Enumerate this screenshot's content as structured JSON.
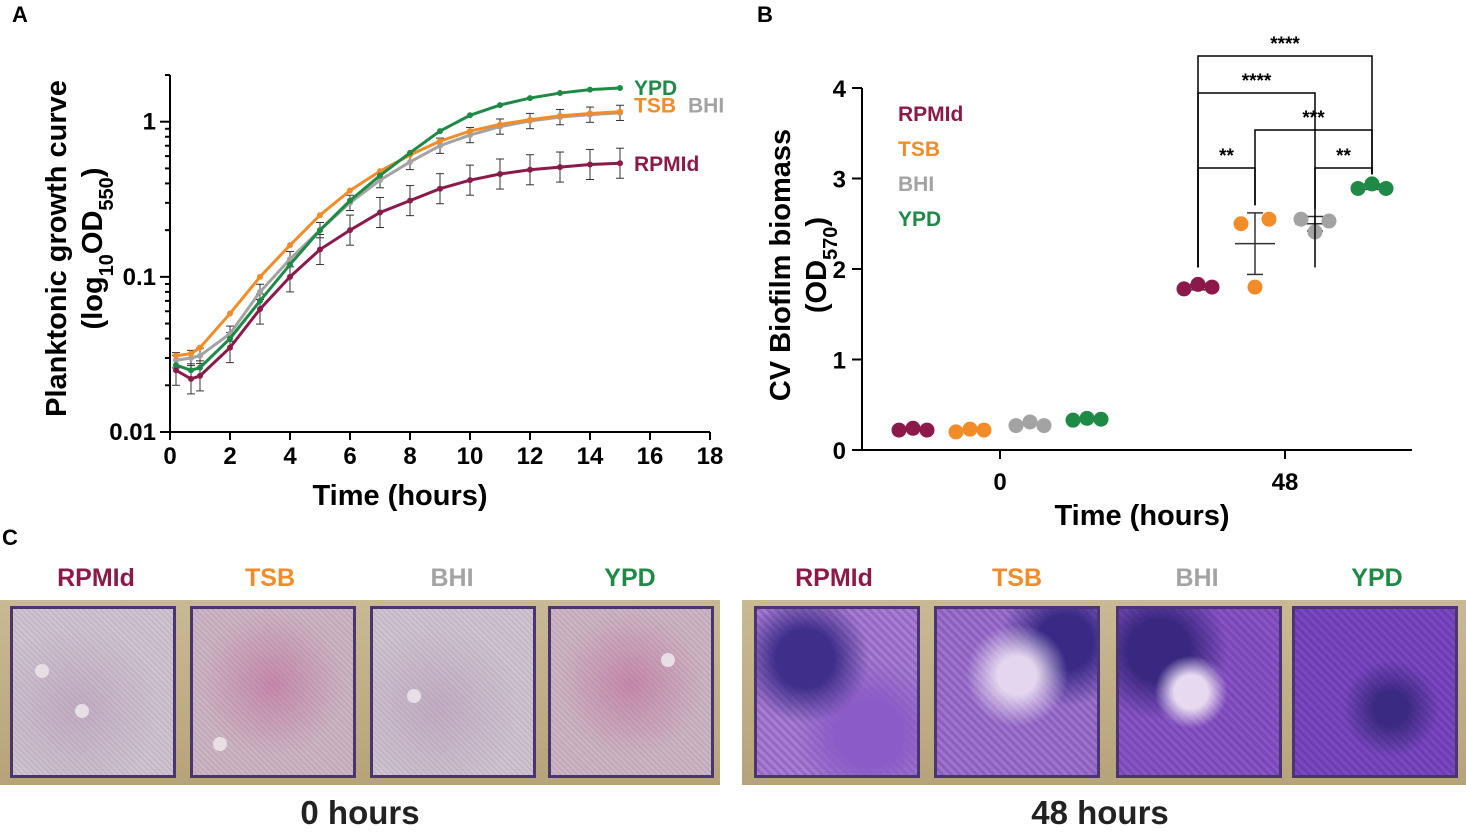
{
  "panels": {
    "a": "A",
    "b": "B",
    "c": "C"
  },
  "colors": {
    "RPMId": "#8b1a4b",
    "TSB": "#f28c28",
    "BHI": "#a3a3a3",
    "YPD": "#1e8a46"
  },
  "chart_data": [
    {
      "type": "line",
      "panel": "A",
      "title": "",
      "xlabel": "Time (hours)",
      "ylabel_parts": {
        "main": "Planktonic growth curve",
        "pre": "(log",
        "sub1": "10",
        "mid": "OD",
        "sub2": "550",
        "post": ")"
      },
      "xlim": [
        0,
        18
      ],
      "ylim": [
        0.01,
        2
      ],
      "yscale": "log",
      "xticks": [
        "0",
        "2",
        "4",
        "6",
        "8",
        "10",
        "12",
        "14",
        "16",
        "18"
      ],
      "yticks": [
        {
          "label": "0.01",
          "value": 0.01
        },
        {
          "label": "0.1",
          "value": 0.1
        },
        {
          "label": "1",
          "value": 1
        }
      ],
      "legend": "direct labels at line ends",
      "x": [
        0.2,
        0.7,
        1,
        2,
        3,
        4,
        5,
        6,
        7,
        8,
        9,
        10,
        11,
        12,
        13,
        14,
        15
      ],
      "series": [
        {
          "name": "YPD",
          "color": "#1e8a46",
          "values": [
            0.027,
            0.025,
            0.026,
            0.04,
            0.07,
            0.12,
            0.2,
            0.31,
            0.45,
            0.63,
            0.87,
            1.1,
            1.28,
            1.42,
            1.53,
            1.61,
            1.65
          ]
        },
        {
          "name": "TSB",
          "color": "#f28c28",
          "values": [
            0.031,
            0.032,
            0.035,
            0.058,
            0.1,
            0.16,
            0.25,
            0.36,
            0.48,
            0.61,
            0.75,
            0.87,
            0.96,
            1.03,
            1.09,
            1.13,
            1.16
          ]
        },
        {
          "name": "BHI",
          "color": "#a3a3a3",
          "values": [
            0.029,
            0.03,
            0.031,
            0.043,
            0.08,
            0.13,
            0.2,
            0.3,
            0.42,
            0.55,
            0.7,
            0.82,
            0.93,
            1.01,
            1.07,
            1.11,
            1.14
          ]
        },
        {
          "name": "RPMId",
          "color": "#8b1a4b",
          "values": [
            0.025,
            0.022,
            0.023,
            0.035,
            0.062,
            0.1,
            0.15,
            0.2,
            0.26,
            0.31,
            0.37,
            0.42,
            0.46,
            0.49,
            0.51,
            0.53,
            0.54
          ]
        }
      ]
    },
    {
      "type": "scatter",
      "panel": "B",
      "title": "",
      "xlabel": "Time (hours)",
      "ylabel_parts": {
        "main": "CV Biofilm biomass",
        "pre": "(OD",
        "sub": "570",
        "post": ")"
      },
      "ylim": [
        0,
        4
      ],
      "yticks": [
        "0",
        "1",
        "2",
        "3",
        "4"
      ],
      "categories": [
        "0",
        "48"
      ],
      "legend": "top-left",
      "series": [
        {
          "name": "RPMId",
          "color": "#8b1a4b",
          "points": {
            "0": [
              0.22,
              0.24,
              0.22
            ],
            "48": [
              1.78,
              1.83,
              1.8
            ]
          },
          "mean": {
            "0": 0.23,
            "48": 1.8
          },
          "sd": {
            "0": 0.01,
            "48": 0.03
          }
        },
        {
          "name": "TSB",
          "color": "#f28c28",
          "points": {
            "0": [
              0.2,
              0.23,
              0.22
            ],
            "48": [
              2.5,
              1.8,
              2.55
            ]
          },
          "mean": {
            "0": 0.22,
            "48": 2.28
          },
          "sd": {
            "0": 0.02,
            "48": 0.34
          }
        },
        {
          "name": "BHI",
          "color": "#a3a3a3",
          "points": {
            "0": [
              0.27,
              0.31,
              0.27
            ],
            "48": [
              2.55,
              2.41,
              2.53
            ]
          },
          "mean": {
            "0": 0.28,
            "48": 2.5
          },
          "sd": {
            "0": 0.02,
            "48": 0.08
          }
        },
        {
          "name": "YPD",
          "color": "#1e8a46",
          "points": {
            "0": [
              0.33,
              0.35,
              0.34
            ],
            "48": [
              2.89,
              2.94,
              2.89
            ]
          },
          "mean": {
            "0": 0.34,
            "48": 2.91
          },
          "sd": {
            "0": 0.01,
            "48": 0.03
          }
        }
      ],
      "significance": [
        {
          "from": "RPMId",
          "to": "YPD",
          "label": "****"
        },
        {
          "from": "RPMId",
          "to": "BHI",
          "label": "****"
        },
        {
          "from": "TSB",
          "to": "YPD",
          "label": "***"
        },
        {
          "from": "RPMId",
          "to": "TSB",
          "label": "**"
        },
        {
          "from": "BHI",
          "to": "YPD",
          "label": "**"
        }
      ]
    }
  ],
  "photos": {
    "groups": [
      {
        "caption": "0 hours",
        "labels": [
          "RPMId",
          "TSB",
          "BHI",
          "YPD"
        ]
      },
      {
        "caption": "48 hours",
        "labels": [
          "RPMId",
          "TSB",
          "BHI",
          "YPD"
        ]
      }
    ]
  }
}
